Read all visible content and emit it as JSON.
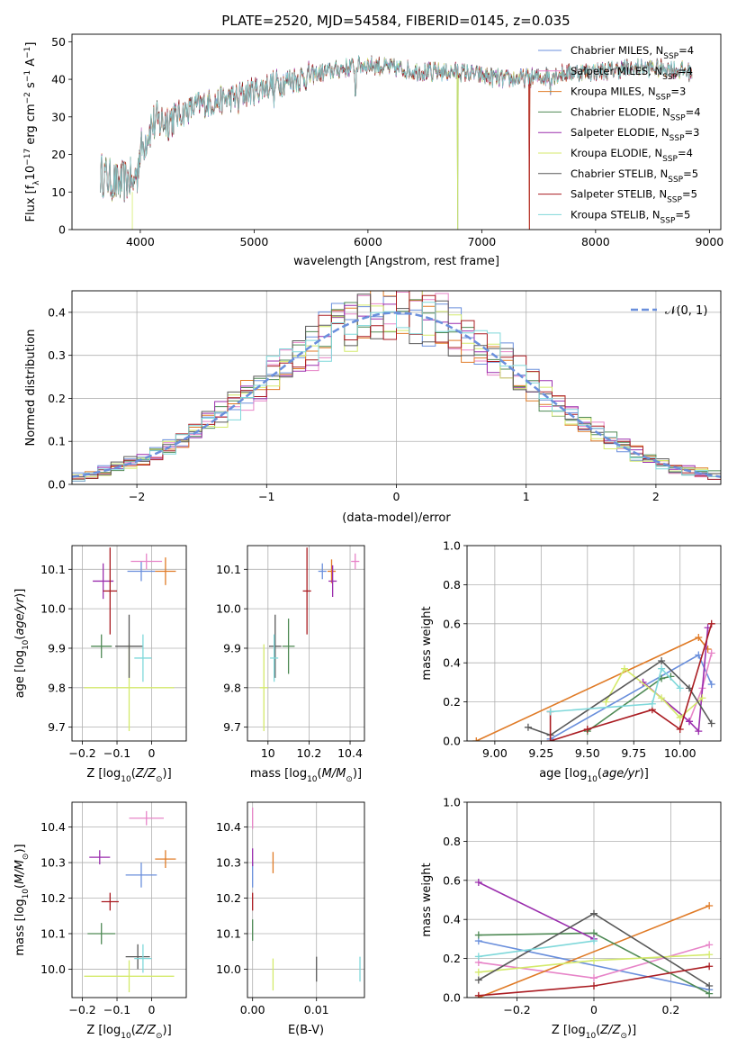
{
  "figure_title": "PLATE=2520, MJD=54584, FIBERID=0145, z=0.035",
  "colors": {
    "Chabrier MILES": "#6a8fdc",
    "Salpeter MILES": "#e784c8",
    "Kroupa MILES": "#e07b27",
    "Chabrier ELODIE": "#4f8a55",
    "Salpeter ELODIE": "#9b2fae",
    "Kroupa ELODIE": "#d4ea6b",
    "Chabrier STELIB": "#595959",
    "Salpeter STELIB": "#aa1c22",
    "Kroupa STELIB": "#7fd8da",
    "gauss": "#6a8fdc"
  },
  "chart_data": [
    {
      "id": "spectrum",
      "type": "line",
      "title": "PLATE=2520, MJD=54584, FIBERID=0145, z=0.035",
      "xlabel": "wavelength [Angstrom, rest frame]",
      "ylabel": "Flux [f_λ 10^-17 erg cm^-2 s^-1 A^-1]",
      "xlim": [
        3400,
        9100
      ],
      "ylim": [
        0,
        52
      ],
      "xticks": [
        4000,
        5000,
        6000,
        7000,
        8000,
        9000
      ],
      "yticks": [
        0,
        10,
        20,
        30,
        40,
        50
      ],
      "grid": false,
      "legend_position": "top-right",
      "x_range": [
        3650,
        8850
      ],
      "continuum": [
        [
          3650,
          15
        ],
        [
          3800,
          12
        ],
        [
          3950,
          14
        ],
        [
          4000,
          21
        ],
        [
          4100,
          28
        ],
        [
          4300,
          30
        ],
        [
          4500,
          33
        ],
        [
          4800,
          35
        ],
        [
          5000,
          37
        ],
        [
          5200,
          39
        ],
        [
          5500,
          41
        ],
        [
          5800,
          43
        ],
        [
          6000,
          44
        ],
        [
          6200,
          43
        ],
        [
          6500,
          42
        ],
        [
          6800,
          42
        ],
        [
          7000,
          41
        ],
        [
          7200,
          40
        ],
        [
          7500,
          40.5
        ],
        [
          7800,
          42
        ],
        [
          8000,
          42
        ],
        [
          8300,
          43
        ],
        [
          8600,
          43
        ],
        [
          8850,
          42
        ]
      ],
      "series": [
        {
          "name": "Chabrier MILES, N_SSP=4"
        },
        {
          "name": "Salpeter MILES, N_SSP=4"
        },
        {
          "name": "Kroupa MILES, N_SSP=3",
          "dropout_at": 7420
        },
        {
          "name": "Chabrier ELODIE, N_SSP=4",
          "dropout_at": 6790
        },
        {
          "name": "Salpeter ELODIE, N_SSP=3"
        },
        {
          "name": "Kroupa ELODIE, N_SSP=4",
          "dropout_at": 6790
        },
        {
          "name": "Chabrier STELIB, N_SSP=5"
        },
        {
          "name": "Salpeter STELIB, N_SSP=5",
          "dropout_at": 7420
        },
        {
          "name": "Kroupa STELIB, N_SSP=5"
        }
      ],
      "legend_labels": [
        {
          "pre": "Chabrier MILES, N",
          "sub": "SSP",
          "post": "=4"
        },
        {
          "pre": "Salpeter MILES, N",
          "sub": "SSP",
          "post": "=4"
        },
        {
          "pre": "Kroupa MILES, N",
          "sub": "SSP",
          "post": "=3"
        },
        {
          "pre": "Chabrier ELODIE, N",
          "sub": "SSP",
          "post": "=4"
        },
        {
          "pre": "Salpeter ELODIE, N",
          "sub": "SSP",
          "post": "=3"
        },
        {
          "pre": "Kroupa ELODIE, N",
          "sub": "SSP",
          "post": "=4"
        },
        {
          "pre": "Chabrier STELIB, N",
          "sub": "SSP",
          "post": "=5"
        },
        {
          "pre": "Salpeter STELIB, N",
          "sub": "SSP",
          "post": "=5"
        },
        {
          "pre": "Kroupa STELIB, N",
          "sub": "SSP",
          "post": "=5"
        }
      ]
    },
    {
      "id": "residuals",
      "type": "line",
      "xlabel": "(data-model)/error",
      "ylabel": "Normed distribution",
      "xlim": [
        -2.5,
        2.5
      ],
      "ylim": [
        0,
        0.45
      ],
      "xticks": [
        -2,
        -1,
        0,
        1,
        2
      ],
      "yticks": [
        0.0,
        0.1,
        0.2,
        0.3,
        0.4
      ],
      "grid": true,
      "legend_position": "top-right",
      "legend_label": "𝒩(0, 1)",
      "bin_width": 0.1,
      "series": "step histograms of the 9 fits around a unit Gaussian"
    },
    {
      "id": "age_vs_Z",
      "type": "scatter",
      "xlabel": "Z [log10(Z/Z⊙)]",
      "ylabel": "age [log10(age/yr)]",
      "xlim": [
        -0.23,
        0.1
      ],
      "ylim": [
        9.665,
        10.16
      ],
      "xticks": [
        -0.2,
        -0.1,
        0.0
      ],
      "yticks": [
        9.7,
        9.8,
        9.9,
        10.0,
        10.1
      ],
      "grid": true,
      "points": [
        {
          "model": "Chabrier MILES",
          "x": -0.03,
          "xerr": 0.04,
          "y": 10.095,
          "yerr": 0.025
        },
        {
          "model": "Salpeter MILES",
          "x": -0.015,
          "xerr": 0.045,
          "y": 10.12,
          "yerr": 0.02
        },
        {
          "model": "Kroupa MILES",
          "x": 0.04,
          "xerr": 0.03,
          "y": 10.095,
          "yerr": 0.035
        },
        {
          "model": "Chabrier ELODIE",
          "x": -0.145,
          "xerr": 0.03,
          "y": 9.905,
          "yerr": 0.03
        },
        {
          "model": "Salpeter ELODIE",
          "x": -0.14,
          "xerr": 0.03,
          "y": 10.07,
          "yerr": 0.045
        },
        {
          "model": "Kroupa ELODIE",
          "x": -0.065,
          "xerr": 0.13,
          "y": 9.8,
          "yerr": 0.11
        },
        {
          "model": "Chabrier STELIB",
          "x": -0.065,
          "xerr": 0.04,
          "y": 9.905,
          "yerr": 0.08
        },
        {
          "model": "Salpeter STELIB",
          "x": -0.12,
          "xerr": 0.02,
          "y": 10.045,
          "yerr": 0.11
        },
        {
          "model": "Kroupa STELIB",
          "x": -0.025,
          "xerr": 0.025,
          "y": 9.875,
          "yerr": 0.06
        }
      ]
    },
    {
      "id": "age_vs_mass",
      "type": "scatter",
      "xlabel": "mass [log10(M/M⊙)]",
      "ylabel": "",
      "xlim": [
        9.9,
        10.47
      ],
      "ylim": [
        9.665,
        10.16
      ],
      "xticks": [
        10.0,
        10.2,
        10.4
      ],
      "yticks": [
        9.7,
        9.8,
        9.9,
        10.0,
        10.1
      ],
      "grid": true,
      "points": [
        {
          "model": "Chabrier MILES",
          "x": 10.265,
          "xerr": 0.02,
          "y": 10.095,
          "yerr": 0.02
        },
        {
          "model": "Salpeter MILES",
          "x": 10.425,
          "xerr": 0.02,
          "y": 10.12,
          "yerr": 0.02
        },
        {
          "model": "Kroupa MILES",
          "x": 10.31,
          "xerr": 0.02,
          "y": 10.095,
          "yerr": 0.03
        },
        {
          "model": "Chabrier ELODIE",
          "x": 10.1,
          "xerr": 0.03,
          "y": 9.905,
          "yerr": 0.07
        },
        {
          "model": "Salpeter ELODIE",
          "x": 10.315,
          "xerr": 0.02,
          "y": 10.07,
          "yerr": 0.04
        },
        {
          "model": "Kroupa ELODIE",
          "x": 9.98,
          "xerr": 0.02,
          "y": 9.8,
          "yerr": 0.11
        },
        {
          "model": "Chabrier STELIB",
          "x": 10.035,
          "xerr": 0.03,
          "y": 9.905,
          "yerr": 0.08
        },
        {
          "model": "Salpeter STELIB",
          "x": 10.19,
          "xerr": 0.02,
          "y": 10.045,
          "yerr": 0.11
        },
        {
          "model": "Kroupa STELIB",
          "x": 10.03,
          "xerr": 0.02,
          "y": 9.875,
          "yerr": 0.06
        }
      ]
    },
    {
      "id": "mass_weight_vs_age",
      "type": "line",
      "xlabel": "age [log10(age/yr)]",
      "ylabel": "mass weight",
      "xlim": [
        8.85,
        10.22
      ],
      "ylim": [
        0,
        1
      ],
      "xticks": [
        9.0,
        9.25,
        9.5,
        9.75,
        10.0
      ],
      "xticklabels": [
        "9.00",
        "9.25",
        "9.50",
        "9.75",
        "10.00"
      ],
      "yticks": [
        0.0,
        0.2,
        0.4,
        0.6,
        0.8,
        1.0
      ],
      "grid": true,
      "series": [
        {
          "model": "Chabrier MILES",
          "x": [
            9.3,
            10.1,
            10.17
          ],
          "y": [
            0.01,
            0.44,
            0.29
          ]
        },
        {
          "model": "Salpeter MILES",
          "x": [
            9.8,
            10.05,
            10.12,
            10.17
          ],
          "y": [
            0.3,
            0.1,
            0.27,
            0.45
          ]
        },
        {
          "model": "Kroupa MILES",
          "x": [
            8.9,
            10.1,
            10.15
          ],
          "y": [
            0.0,
            0.53,
            0.47
          ]
        },
        {
          "model": "Chabrier ELODIE",
          "x": [
            9.5,
            9.9,
            9.95
          ],
          "y": [
            0.05,
            0.32,
            0.33
          ]
        },
        {
          "model": "Salpeter ELODIE",
          "x": [
            9.8,
            10.05,
            10.1,
            10.15
          ],
          "y": [
            0.3,
            0.1,
            0.05,
            0.58
          ]
        },
        {
          "model": "Kroupa ELODIE",
          "x": [
            9.6,
            9.7,
            9.9,
            10.0,
            10.12
          ],
          "y": [
            0.2,
            0.37,
            0.22,
            0.12,
            0.22
          ]
        },
        {
          "model": "Chabrier STELIB",
          "x": [
            9.18,
            9.3,
            9.9,
            10.05,
            10.17
          ],
          "y": [
            0.07,
            0.03,
            0.41,
            0.27,
            0.09
          ]
        },
        {
          "model": "Salpeter STELIB",
          "x": [
            9.3,
            9.3,
            9.5,
            9.85,
            10.0,
            10.17
          ],
          "y": [
            0.15,
            0.0,
            0.06,
            0.16,
            0.06,
            0.6
          ]
        },
        {
          "model": "Kroupa STELIB",
          "x": [
            9.3,
            9.85,
            9.9,
            10.0
          ],
          "y": [
            0.15,
            0.19,
            0.37,
            0.27
          ]
        }
      ]
    },
    {
      "id": "mass_vs_Z",
      "type": "scatter",
      "xlabel": "Z [log10(Z/Z⊙)]",
      "ylabel": "mass [log10(M/M⊙)]",
      "xlim": [
        -0.23,
        0.1
      ],
      "ylim": [
        9.92,
        10.47
      ],
      "xticks": [
        -0.2,
        -0.1,
        0.0
      ],
      "yticks": [
        10.0,
        10.1,
        10.2,
        10.3,
        10.4
      ],
      "grid": true,
      "points": [
        {
          "model": "Chabrier MILES",
          "x": -0.03,
          "xerr": 0.045,
          "y": 10.265,
          "yerr": 0.035
        },
        {
          "model": "Salpeter MILES",
          "x": -0.015,
          "xerr": 0.05,
          "y": 10.425,
          "yerr": 0.02
        },
        {
          "model": "Kroupa MILES",
          "x": 0.04,
          "xerr": 0.03,
          "y": 10.31,
          "yerr": 0.025
        },
        {
          "model": "Chabrier ELODIE",
          "x": -0.145,
          "xerr": 0.04,
          "y": 10.1,
          "yerr": 0.03
        },
        {
          "model": "Salpeter ELODIE",
          "x": -0.15,
          "xerr": 0.03,
          "y": 10.315,
          "yerr": 0.02
        },
        {
          "model": "Kroupa ELODIE",
          "x": -0.065,
          "xerr": 0.13,
          "y": 9.98,
          "yerr": 0.045
        },
        {
          "model": "Chabrier STELIB",
          "x": -0.04,
          "xerr": 0.035,
          "y": 10.035,
          "yerr": 0.035
        },
        {
          "model": "Salpeter STELIB",
          "x": -0.12,
          "xerr": 0.025,
          "y": 10.19,
          "yerr": 0.025
        },
        {
          "model": "Kroupa STELIB",
          "x": -0.025,
          "xerr": 0.025,
          "y": 10.03,
          "yerr": 0.04
        }
      ]
    },
    {
      "id": "mass_vs_ebv",
      "type": "scatter",
      "xlabel": "E(B-V)",
      "ylabel": "",
      "xlim": [
        -0.0008,
        0.0175
      ],
      "ylim": [
        9.92,
        10.47
      ],
      "xticks": [
        0.0,
        0.01
      ],
      "xticklabels": [
        "0.00",
        "0.01"
      ],
      "yticks": [
        10.0,
        10.1,
        10.2,
        10.3,
        10.4
      ],
      "grid": true,
      "points": [
        {
          "model": "Chabrier MILES",
          "x": 0.0,
          "y": 10.265,
          "yerr": 0.035
        },
        {
          "model": "Salpeter MILES",
          "x": 0.0,
          "y": 10.425,
          "yerr": 0.03
        },
        {
          "model": "Kroupa MILES",
          "x": 0.0032,
          "y": 10.3,
          "yerr": 0.03
        },
        {
          "model": "Chabrier ELODIE",
          "x": 0.0,
          "y": 10.11,
          "yerr": 0.03
        },
        {
          "model": "Salpeter ELODIE",
          "x": 0.0,
          "y": 10.315,
          "yerr": 0.025
        },
        {
          "model": "Kroupa ELODIE",
          "x": 0.0032,
          "y": 9.985,
          "yerr": 0.045
        },
        {
          "model": "Chabrier STELIB",
          "x": 0.01,
          "y": 10.0,
          "yerr": 0.035
        },
        {
          "model": "Salpeter STELIB",
          "x": 0.0,
          "y": 10.19,
          "yerr": 0.025
        },
        {
          "model": "Kroupa STELIB",
          "x": 0.0168,
          "y": 10.0,
          "yerr": 0.035
        }
      ]
    },
    {
      "id": "mass_weight_vs_Z",
      "type": "line",
      "xlabel": "Z [log10(Z/Z⊙)]",
      "ylabel": "mass weight",
      "xlim": [
        -0.33,
        0.33
      ],
      "ylim": [
        0,
        1
      ],
      "xticks": [
        -0.2,
        0.0,
        0.2
      ],
      "yticks": [
        0.0,
        0.2,
        0.4,
        0.6,
        0.8,
        1.0
      ],
      "grid": true,
      "series": [
        {
          "model": "Chabrier MILES",
          "x": [
            -0.3,
            0.3
          ],
          "y": [
            0.29,
            0.04
          ]
        },
        {
          "model": "Salpeter MILES",
          "x": [
            -0.3,
            0.0,
            0.3
          ],
          "y": [
            0.18,
            0.1,
            0.27
          ]
        },
        {
          "model": "Kroupa MILES",
          "x": [
            -0.3,
            0.3
          ],
          "y": [
            0.0,
            0.47
          ]
        },
        {
          "model": "Chabrier ELODIE",
          "x": [
            -0.3,
            0.0,
            0.3
          ],
          "y": [
            0.32,
            0.33,
            0.02
          ]
        },
        {
          "model": "Salpeter ELODIE",
          "x": [
            -0.3,
            0.0
          ],
          "y": [
            0.59,
            0.3
          ]
        },
        {
          "model": "Kroupa ELODIE",
          "x": [
            -0.3,
            0.0,
            0.3
          ],
          "y": [
            0.13,
            0.19,
            0.22
          ]
        },
        {
          "model": "Chabrier STELIB",
          "x": [
            -0.3,
            0.0,
            0.3
          ],
          "y": [
            0.09,
            0.43,
            0.06
          ]
        },
        {
          "model": "Salpeter STELIB",
          "x": [
            -0.3,
            0.0,
            0.3
          ],
          "y": [
            0.01,
            0.06,
            0.16
          ]
        },
        {
          "model": "Kroupa STELIB",
          "x": [
            -0.3,
            0.0
          ],
          "y": [
            0.21,
            0.29
          ]
        }
      ]
    }
  ]
}
